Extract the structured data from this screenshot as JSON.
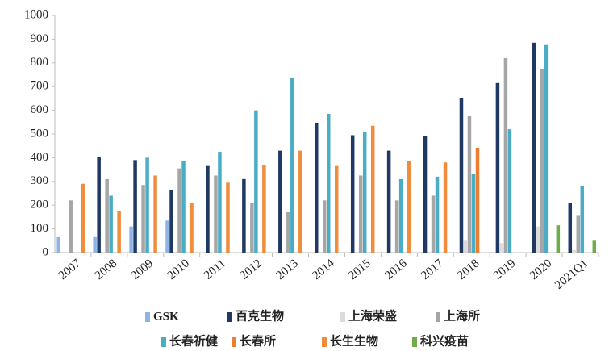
{
  "chart_data": {
    "type": "bar",
    "categories": [
      "2007",
      "2008",
      "2009",
      "2010",
      "2011",
      "2012",
      "2013",
      "2014",
      "2015",
      "2016",
      "2017",
      "2018",
      "2019",
      "2020",
      "2021Q1"
    ],
    "series": [
      {
        "name": "GSK",
        "color": "#8db4e2",
        "values": [
          65,
          65,
          110,
          135,
          null,
          null,
          null,
          null,
          null,
          null,
          null,
          null,
          null,
          null,
          null
        ]
      },
      {
        "name": "百克生物",
        "color": "#1f3864",
        "values": [
          null,
          405,
          390,
          265,
          365,
          310,
          430,
          545,
          495,
          430,
          490,
          650,
          715,
          885,
          210
        ]
      },
      {
        "name": "上海荣盛",
        "color": "#dcdcdc",
        "values": [
          null,
          null,
          null,
          null,
          null,
          null,
          null,
          null,
          null,
          null,
          null,
          50,
          40,
          110,
          10
        ]
      },
      {
        "name": "上海所",
        "color": "#a6a6a6",
        "values": [
          220,
          310,
          285,
          355,
          325,
          210,
          170,
          220,
          325,
          220,
          240,
          575,
          820,
          775,
          155
        ]
      },
      {
        "name": "长春祈健",
        "color": "#4bacc6",
        "values": [
          null,
          240,
          400,
          385,
          425,
          600,
          735,
          585,
          510,
          310,
          320,
          330,
          520,
          875,
          280
        ]
      },
      {
        "name": "长春所",
        "color": "#ed7d31",
        "values": [
          null,
          null,
          null,
          null,
          null,
          null,
          null,
          null,
          null,
          null,
          null,
          440,
          null,
          null,
          null
        ]
      },
      {
        "name": "长生生物",
        "color": "#f08c3c",
        "values": [
          290,
          175,
          325,
          210,
          295,
          370,
          430,
          365,
          535,
          385,
          380,
          null,
          null,
          null,
          null
        ]
      },
      {
        "name": "科兴疫苗",
        "color": "#70ad47",
        "values": [
          null,
          null,
          null,
          null,
          null,
          null,
          null,
          null,
          null,
          null,
          null,
          null,
          null,
          115,
          50
        ]
      }
    ],
    "ylim": [
      0,
      1000
    ],
    "yticks": [
      0,
      100,
      200,
      300,
      400,
      500,
      600,
      700,
      800,
      900,
      1000
    ]
  }
}
